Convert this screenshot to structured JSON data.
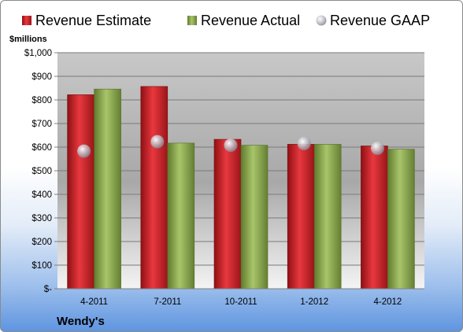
{
  "company": "Wendy's",
  "chart_data": {
    "type": "bar",
    "y_unit_label": "$millions",
    "categories": [
      "4-2011",
      "7-2011",
      "10-2011",
      "1-2012",
      "4-2012"
    ],
    "series": [
      {
        "name": "Revenue Estimate",
        "kind": "bar",
        "color": "#d2232a",
        "values": [
          822,
          857,
          633,
          612,
          605
        ]
      },
      {
        "name": "Revenue Actual",
        "kind": "bar",
        "color": "#8fae4f",
        "values": [
          846,
          617,
          608,
          612,
          591
        ]
      },
      {
        "name": "Revenue GAAP",
        "kind": "marker",
        "color": "#b8b8c0",
        "values": [
          583,
          623,
          608,
          615,
          595
        ]
      }
    ],
    "ylim": [
      0,
      1000
    ],
    "ytick_labels": [
      "$-",
      "$100",
      "$200",
      "$300",
      "$400",
      "$500",
      "$600",
      "$700",
      "$800",
      "$900",
      "$1,000"
    ],
    "grid": true,
    "legend_position": "top"
  }
}
